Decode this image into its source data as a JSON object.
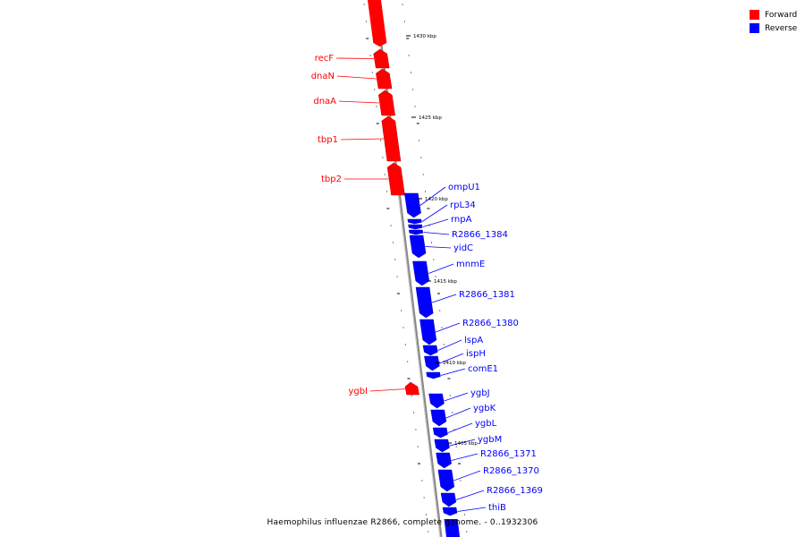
{
  "caption": "Haemophilus influenzae R2866, complete genome. - 0..1932306",
  "legend": [
    {
      "label": "Forward",
      "color": "#ff0000"
    },
    {
      "label": "Reverse",
      "color": "#0000ff"
    }
  ],
  "colors": {
    "forward": "#ff0000",
    "reverse": "#0000ff",
    "backbone": "#888888"
  },
  "kbp_labels": [
    "1430 kbp",
    "1425 kbp",
    "1420 kbp",
    "1415 kbp",
    "1410 kbp",
    "1405 kbp"
  ],
  "genes": [
    {
      "name": "recF",
      "strand": "forward"
    },
    {
      "name": "dnaN",
      "strand": "forward"
    },
    {
      "name": "dnaA",
      "strand": "forward"
    },
    {
      "name": "tbp1",
      "strand": "forward"
    },
    {
      "name": "tbp2",
      "strand": "forward"
    },
    {
      "name": "ompU1",
      "strand": "reverse"
    },
    {
      "name": "rpL34",
      "strand": "reverse"
    },
    {
      "name": "rnpA",
      "strand": "reverse"
    },
    {
      "name": "R2866_1384",
      "strand": "reverse"
    },
    {
      "name": "yidC",
      "strand": "reverse"
    },
    {
      "name": "mnmE",
      "strand": "reverse"
    },
    {
      "name": "R2866_1381",
      "strand": "reverse"
    },
    {
      "name": "R2866_1380",
      "strand": "reverse"
    },
    {
      "name": "lspA",
      "strand": "reverse"
    },
    {
      "name": "ispH",
      "strand": "reverse"
    },
    {
      "name": "comE1",
      "strand": "reverse"
    },
    {
      "name": "ygbI",
      "strand": "forward"
    },
    {
      "name": "ygbJ",
      "strand": "reverse"
    },
    {
      "name": "ygbK",
      "strand": "reverse"
    },
    {
      "name": "ygbL",
      "strand": "reverse"
    },
    {
      "name": "ygbM",
      "strand": "reverse"
    },
    {
      "name": "R2866_1371",
      "strand": "reverse"
    },
    {
      "name": "R2866_1370",
      "strand": "reverse"
    },
    {
      "name": "R2866_1369",
      "strand": "reverse"
    },
    {
      "name": "thiB",
      "strand": "reverse"
    }
  ]
}
